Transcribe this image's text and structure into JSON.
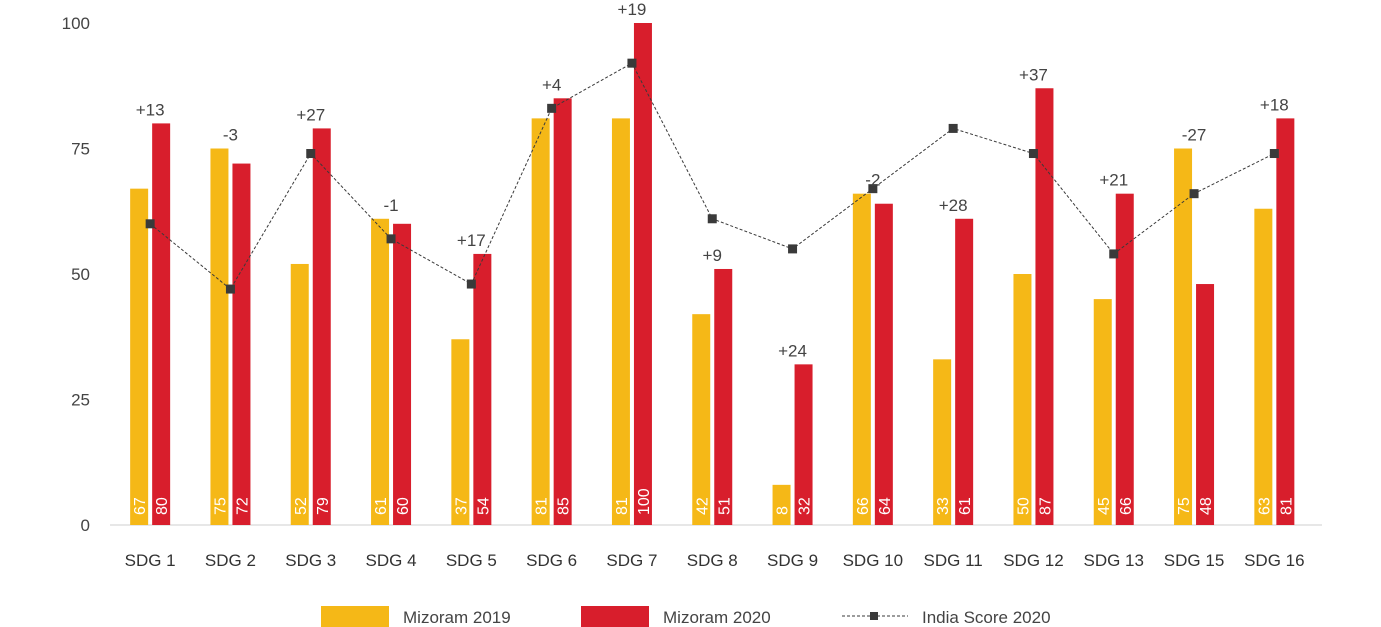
{
  "chart_data": {
    "type": "bar",
    "categories": [
      "SDG 1",
      "SDG 2",
      "SDG 3",
      "SDG 4",
      "SDG 5",
      "SDG 6",
      "SDG 7",
      "SDG 8",
      "SDG 9",
      "SDG 10",
      "SDG 11",
      "SDG 12",
      "SDG 13",
      "SDG 15",
      "SDG 16"
    ],
    "ylim": [
      0,
      100
    ],
    "yticks": [
      0,
      25,
      50,
      75,
      100
    ],
    "series": [
      {
        "name": "Mizoram 2019",
        "type": "bar",
        "color": "#F5B817",
        "values": [
          67,
          75,
          52,
          61,
          37,
          81,
          81,
          42,
          8,
          66,
          33,
          50,
          45,
          75,
          63
        ]
      },
      {
        "name": "Mizoram 2020",
        "type": "bar",
        "color": "#D81E2C",
        "values": [
          80,
          72,
          79,
          60,
          54,
          85,
          100,
          51,
          32,
          64,
          61,
          87,
          66,
          48,
          81
        ]
      },
      {
        "name": "India Score 2020",
        "type": "line",
        "color": "#3a3a3a",
        "style": "dashed-square-markers",
        "values": [
          60,
          47,
          74,
          57,
          48,
          83,
          92,
          61,
          55,
          67,
          79,
          74,
          54,
          66,
          74
        ]
      }
    ],
    "change_labels": [
      "+13",
      "-3",
      "+27",
      "-1",
      "+17",
      "+4",
      "+19",
      "+9",
      "+24",
      "-2",
      "+28",
      "+37",
      "+21",
      "-27",
      "+18"
    ],
    "legend_position": "bottom-center",
    "grid": false
  }
}
